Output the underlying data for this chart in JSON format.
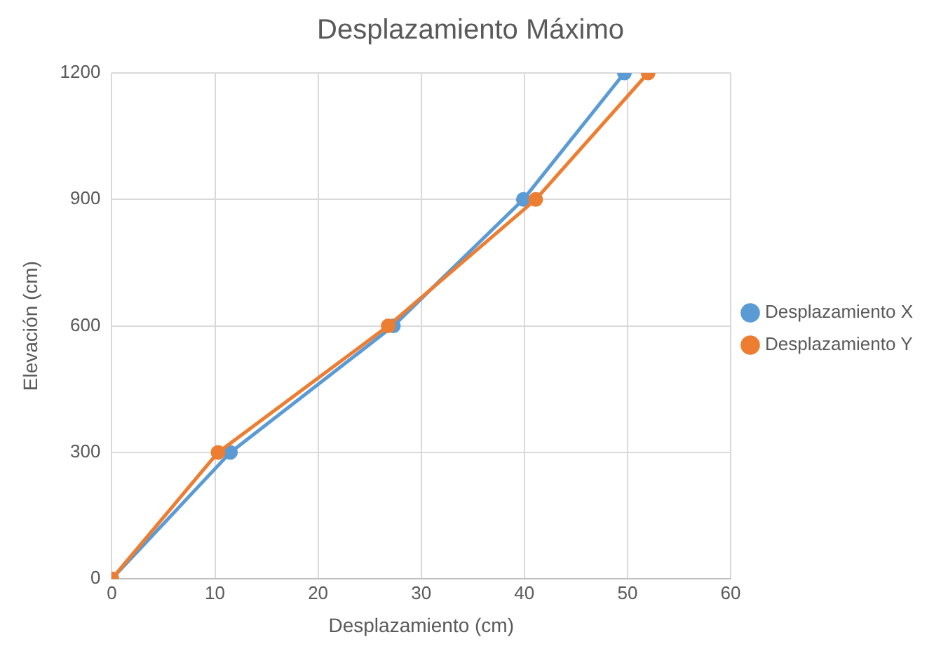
{
  "chart_data": {
    "type": "line",
    "title": "Desplazamiento Máximo",
    "xlabel": "Desplazamiento (cm)",
    "ylabel": "Elevación (cm)",
    "xlim": [
      0,
      60
    ],
    "xticks": [
      0,
      10,
      20,
      30,
      40,
      50,
      60
    ],
    "ylim": [
      0,
      1200
    ],
    "yticks": [
      0,
      300,
      600,
      900,
      1200
    ],
    "grid": true,
    "legend": "right",
    "marker": "circle",
    "line_style": "solid",
    "series": [
      {
        "name": "Desplazamiento X",
        "color": "#5b9bd5",
        "x": [
          0,
          11.5,
          27.3,
          39.9,
          49.7
        ],
        "values": [
          0,
          300,
          600,
          900,
          1200
        ]
      },
      {
        "name": "Desplazamiento Y",
        "color": "#ed7d31",
        "x": [
          0,
          10.3,
          26.8,
          41.1,
          52
        ],
        "values": [
          0,
          300,
          600,
          900,
          1200
        ]
      }
    ]
  }
}
